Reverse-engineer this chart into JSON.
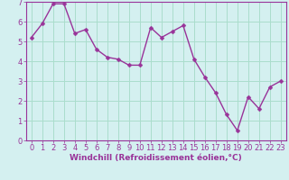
{
  "x": [
    0,
    1,
    2,
    3,
    4,
    5,
    6,
    7,
    8,
    9,
    10,
    11,
    12,
    13,
    14,
    15,
    16,
    17,
    18,
    19,
    20,
    21,
    22,
    23
  ],
  "y": [
    5.2,
    5.9,
    6.9,
    6.9,
    5.4,
    5.6,
    4.6,
    4.2,
    4.1,
    3.8,
    3.8,
    5.7,
    5.2,
    5.5,
    5.8,
    4.1,
    3.2,
    2.4,
    1.3,
    0.5,
    2.2,
    1.6,
    2.7,
    3.0
  ],
  "line_color": "#993399",
  "marker_color": "#993399",
  "bg_color": "#d4f0f0",
  "grid_color": "#aaddcc",
  "axis_color": "#993399",
  "xlabel": "Windchill (Refroidissement éolien,°C)",
  "ylim": [
    0,
    7
  ],
  "xlim_min": -0.5,
  "xlim_max": 23.5,
  "yticks": [
    0,
    1,
    2,
    3,
    4,
    5,
    6,
    7
  ],
  "xticks": [
    0,
    1,
    2,
    3,
    4,
    5,
    6,
    7,
    8,
    9,
    10,
    11,
    12,
    13,
    14,
    15,
    16,
    17,
    18,
    19,
    20,
    21,
    22,
    23
  ],
  "xlabel_fontsize": 6.5,
  "tick_fontsize": 6,
  "line_width": 1.0,
  "marker_size": 2.5
}
